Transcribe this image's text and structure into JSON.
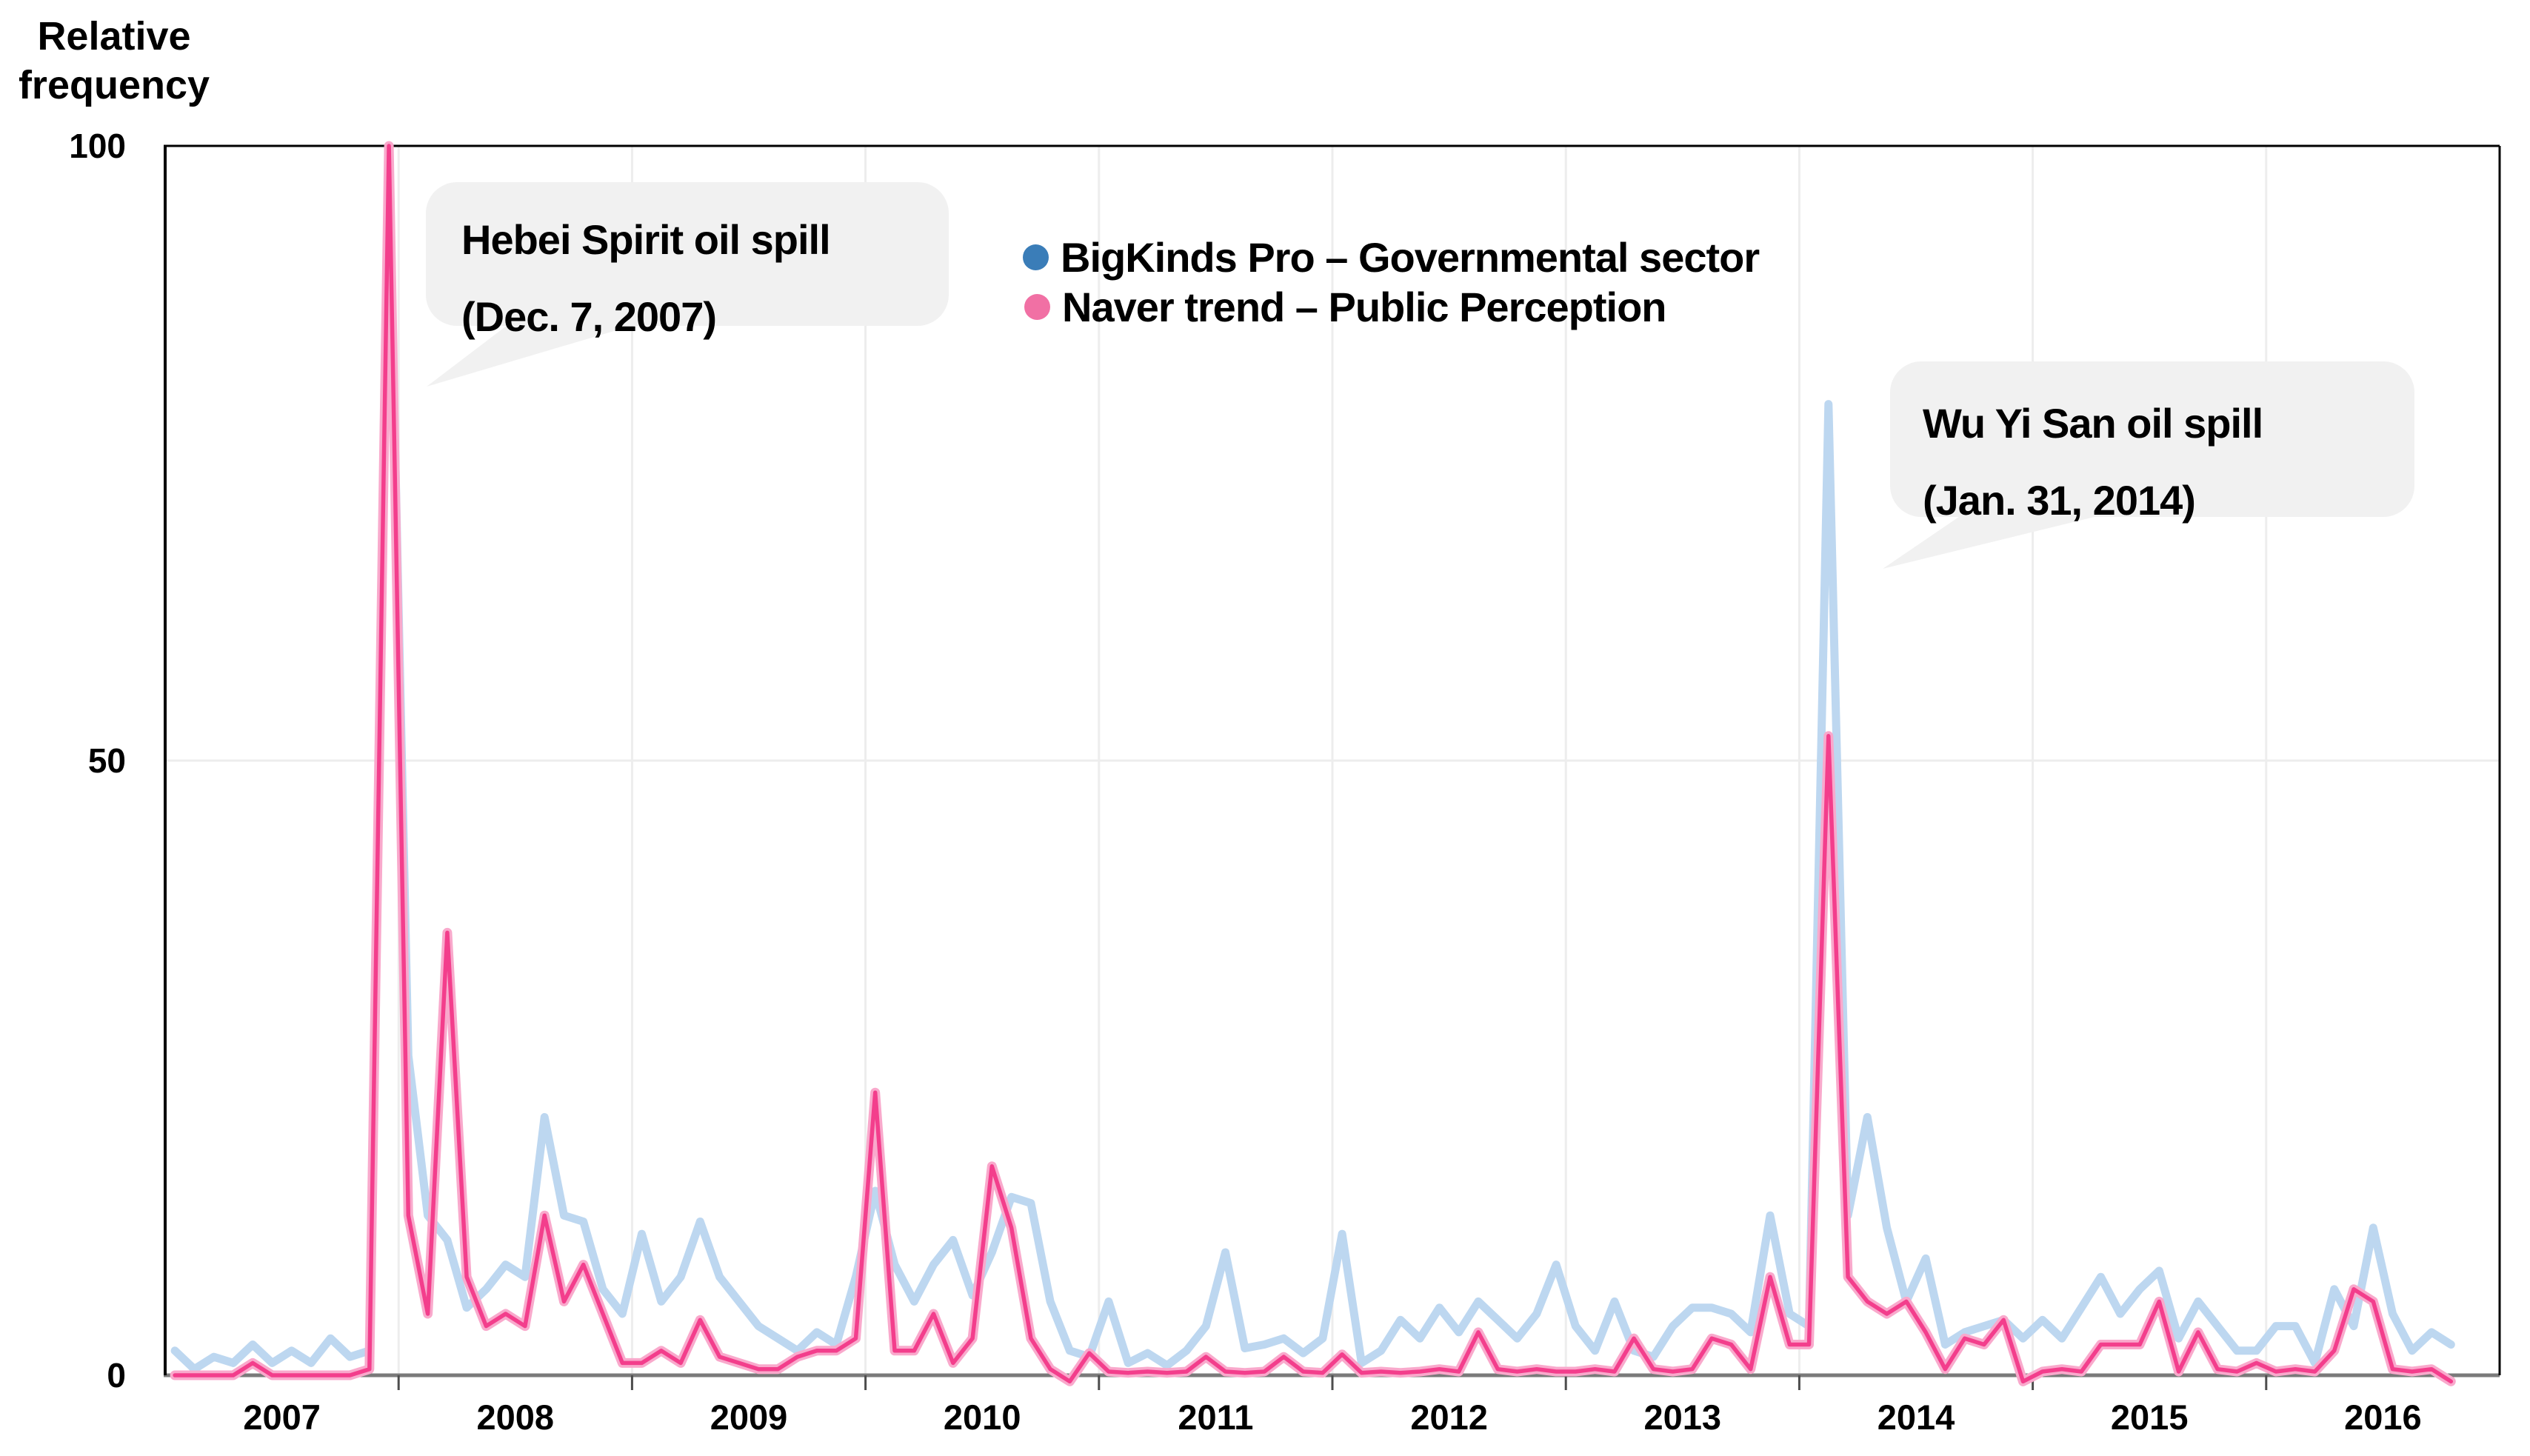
{
  "figure": {
    "background": "#ffffff",
    "text_color": "#000000",
    "callout_bg": "#f1f1f1",
    "frame_color": "#000000",
    "axis_line_color": "#7a7a7a",
    "gridline_color": "#ededed",
    "tick_color": "#4d4d4d"
  },
  "chart_data": {
    "type": "line",
    "title": "",
    "ylabel": "Relative frequency",
    "xlabel": "",
    "ylim": [
      0,
      100
    ],
    "yticks": [
      0,
      50,
      100
    ],
    "x_year_labels": [
      "2007",
      "2008",
      "2009",
      "2010",
      "2011",
      "2012",
      "2013",
      "2014",
      "2015",
      "2016"
    ],
    "x_unit": "month",
    "x_start": "2007-01",
    "x_end": "2016-10",
    "grid": {
      "horizontal_at_50": true,
      "vertical_at_year_boundaries": true
    },
    "legend_position": "inside-top-center",
    "series": [
      {
        "name": "BigKinds Pro – Governmental sector",
        "color": "#bdd7f0",
        "legend_dot_color": "#3a7db8",
        "values": [
          2,
          0.5,
          1.5,
          1,
          2.5,
          1,
          2,
          1,
          3,
          1.5,
          2,
          98.5,
          26,
          13,
          11,
          5.5,
          7,
          9,
          8,
          21,
          13,
          12.5,
          7,
          5,
          11.5,
          6,
          8,
          12.5,
          8,
          6,
          4,
          3,
          2,
          3.5,
          2.5,
          8,
          15,
          9,
          6,
          9,
          11,
          6.5,
          10,
          14.5,
          14,
          6,
          2,
          1.5,
          6,
          1,
          1.8,
          0.8,
          2,
          4,
          10,
          2.2,
          2.5,
          3,
          1.8,
          3,
          11.5,
          1,
          2,
          4.5,
          3,
          5.5,
          3.5,
          6,
          4.5,
          3,
          5,
          9,
          4,
          2,
          6,
          2,
          1.5,
          4,
          5.5,
          5.5,
          5,
          3.5,
          13,
          5,
          4,
          79,
          13,
          21,
          12,
          6,
          9.5,
          2.5,
          3.5,
          4,
          4.5,
          3,
          4.5,
          3,
          5.5,
          8,
          5,
          7,
          8.5,
          3,
          6,
          4,
          2,
          2,
          4,
          4,
          1,
          7,
          4,
          12,
          5,
          2,
          3.5,
          2.5
        ]
      },
      {
        "name": "Naver trend – Public Perception",
        "color": "#f33e8c",
        "halo_color": "#f9a9cc",
        "legend_dot_color": "#f170a4",
        "values": [
          0,
          0,
          0,
          0,
          1,
          0,
          0,
          0,
          0,
          0,
          0.5,
          100,
          13,
          5,
          36,
          8,
          4,
          5,
          4,
          13,
          6,
          9,
          5,
          1,
          1,
          2,
          1,
          4.5,
          1.5,
          1,
          0.5,
          0.5,
          1.5,
          2,
          2,
          3,
          23,
          2,
          2,
          5,
          1,
          3,
          17,
          12,
          3,
          0.5,
          -0.5,
          1.8,
          0.3,
          0.2,
          0.3,
          0.2,
          0.3,
          1.5,
          0.3,
          0.2,
          0.3,
          1.5,
          0.3,
          0.2,
          1.7,
          0.2,
          0.3,
          0.2,
          0.3,
          0.5,
          0.3,
          3.5,
          0.5,
          0.3,
          0.5,
          0.3,
          0.3,
          0.5,
          0.3,
          3,
          0.5,
          0.3,
          0.5,
          3,
          2.5,
          0.5,
          8,
          2.5,
          2.5,
          52,
          8,
          6,
          5,
          6,
          3.5,
          0.5,
          3,
          2.5,
          4.5,
          -0.5,
          0.3,
          0.5,
          0.3,
          2.5,
          2.5,
          2.5,
          6,
          0.3,
          3.5,
          0.5,
          0.3,
          1,
          0.3,
          0.5,
          0.3,
          2,
          7,
          6,
          0.5,
          0.3,
          0.5,
          -0.5
        ]
      }
    ],
    "annotations": [
      {
        "title": "Hebei Spirit oil spill",
        "date": "(Dec. 7, 2007)",
        "points_to": "2007-12 spike (value 100)"
      },
      {
        "title": "Wu Yi San oil spill",
        "date": "(Jan. 31, 2014)",
        "points_to": "2014-02 spike (value ~79)"
      }
    ]
  }
}
